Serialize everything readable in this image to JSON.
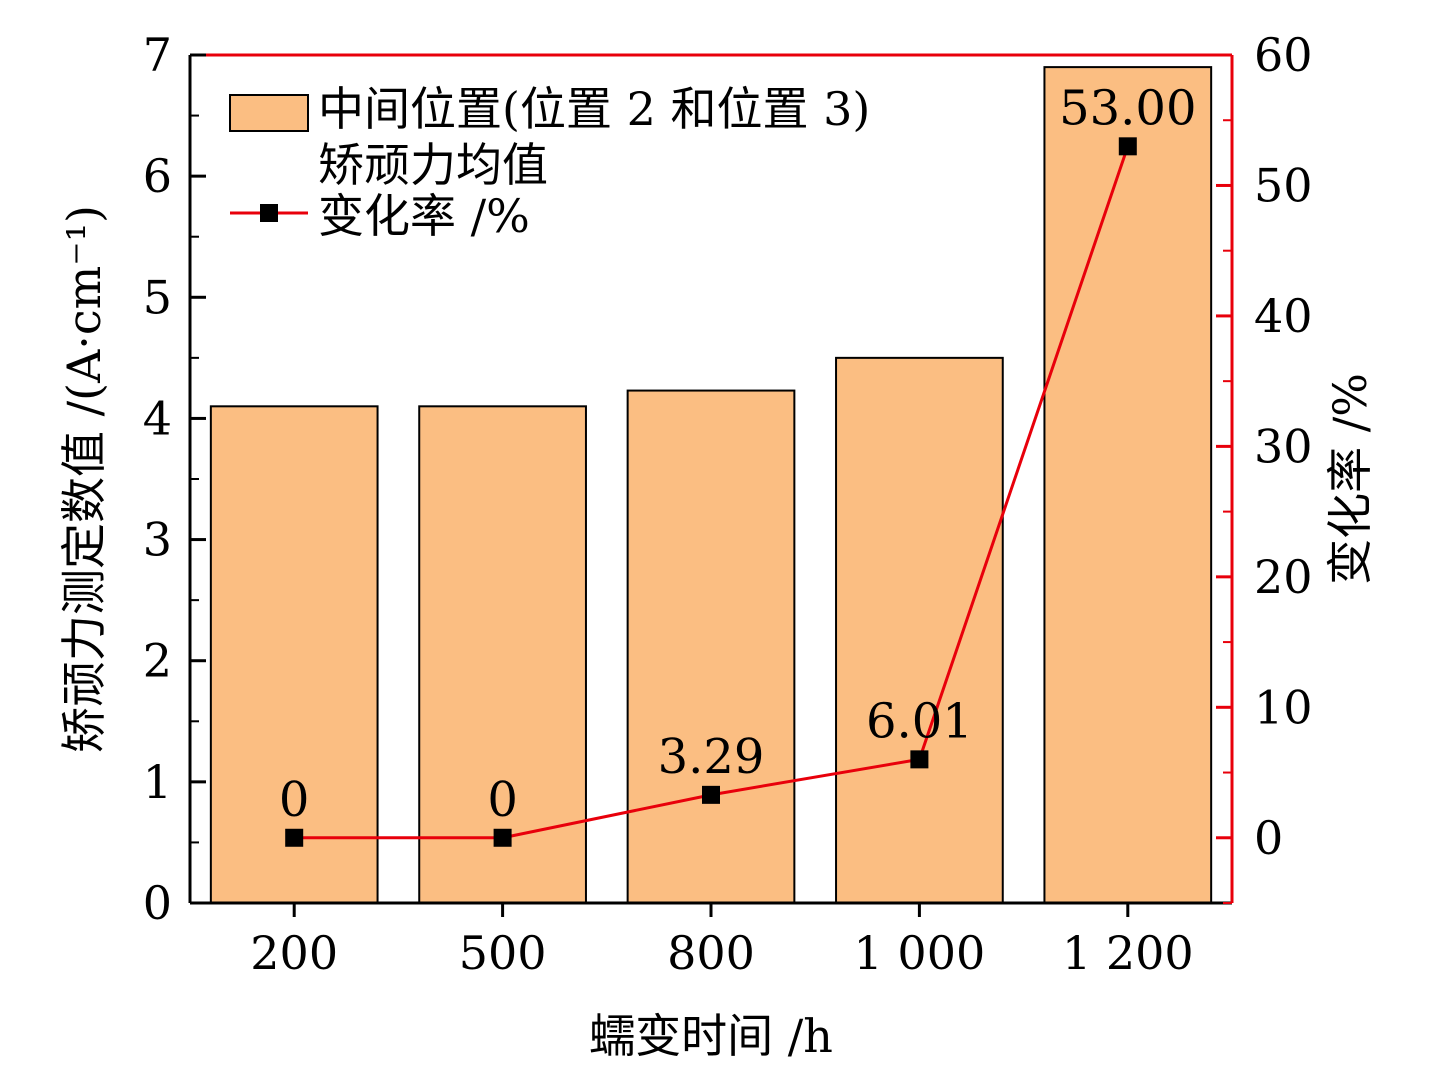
{
  "chart_data": {
    "type": "bar",
    "categories": [
      "200",
      "500",
      "800",
      "1 000",
      "1 200"
    ],
    "series": [
      {
        "name": "中间位置(位置 2 和位置 3)\n矫顽力均值",
        "type": "bar",
        "axis": "left",
        "values": [
          4.1,
          4.1,
          4.23,
          4.5,
          6.9
        ],
        "color": "#FBBE82"
      },
      {
        "name": "变化率 /%",
        "type": "line",
        "axis": "right",
        "values": [
          0,
          0,
          3.29,
          6.01,
          53.0
        ],
        "labels": [
          "0",
          "0",
          "3.29",
          "6.01",
          "53.00"
        ],
        "color": "#E8000B",
        "marker": "square"
      }
    ],
    "xlabel": "蠕变时间 /h",
    "ylabel": "矫顽力测定数值 /(A·cm⁻¹)",
    "y2label": "变化率 /%",
    "ylim": [
      0,
      7
    ],
    "y2lim": [
      -5,
      60
    ],
    "yticks": [
      "0",
      "1",
      "2",
      "3",
      "4",
      "5",
      "6",
      "7"
    ],
    "y2ticks": [
      "0",
      "10",
      "20",
      "30",
      "40",
      "50",
      "60"
    ],
    "legend_position": "top-left",
    "grid": false,
    "right_axis_color": "#E8000B"
  }
}
